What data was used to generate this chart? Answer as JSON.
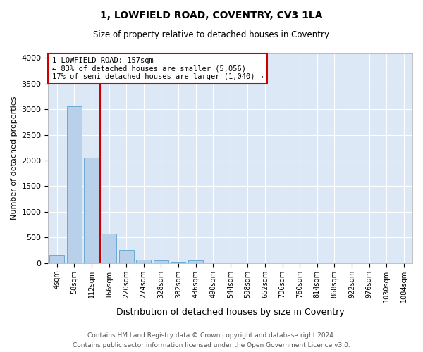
{
  "title": "1, LOWFIELD ROAD, COVENTRY, CV3 1LA",
  "subtitle": "Size of property relative to detached houses in Coventry",
  "xlabel": "Distribution of detached houses by size in Coventry",
  "ylabel": "Number of detached properties",
  "bin_labels": [
    "4sqm",
    "58sqm",
    "112sqm",
    "166sqm",
    "220sqm",
    "274sqm",
    "328sqm",
    "382sqm",
    "436sqm",
    "490sqm",
    "544sqm",
    "598sqm",
    "652sqm",
    "706sqm",
    "760sqm",
    "814sqm",
    "868sqm",
    "922sqm",
    "976sqm",
    "1030sqm",
    "1084sqm"
  ],
  "bar_heights": [
    155,
    3060,
    2060,
    570,
    250,
    65,
    45,
    30,
    50,
    0,
    0,
    0,
    0,
    0,
    0,
    0,
    0,
    0,
    0,
    0,
    0
  ],
  "bar_color": "#b8d0ea",
  "bar_edge_color": "#6aaad4",
  "property_line_color": "#cc0000",
  "annotation_text": "1 LOWFIELD ROAD: 157sqm\n← 83% of detached houses are smaller (5,056)\n17% of semi-detached houses are larger (1,040) →",
  "annotation_box_color": "#ffffff",
  "annotation_box_edge_color": "#cc0000",
  "ylim": [
    0,
    4100
  ],
  "yticks": [
    0,
    500,
    1000,
    1500,
    2000,
    2500,
    3000,
    3500,
    4000
  ],
  "footer_line1": "Contains HM Land Registry data © Crown copyright and database right 2024.",
  "footer_line2": "Contains public sector information licensed under the Open Government Licence v3.0.",
  "plot_bg_color": "#dce8f5"
}
